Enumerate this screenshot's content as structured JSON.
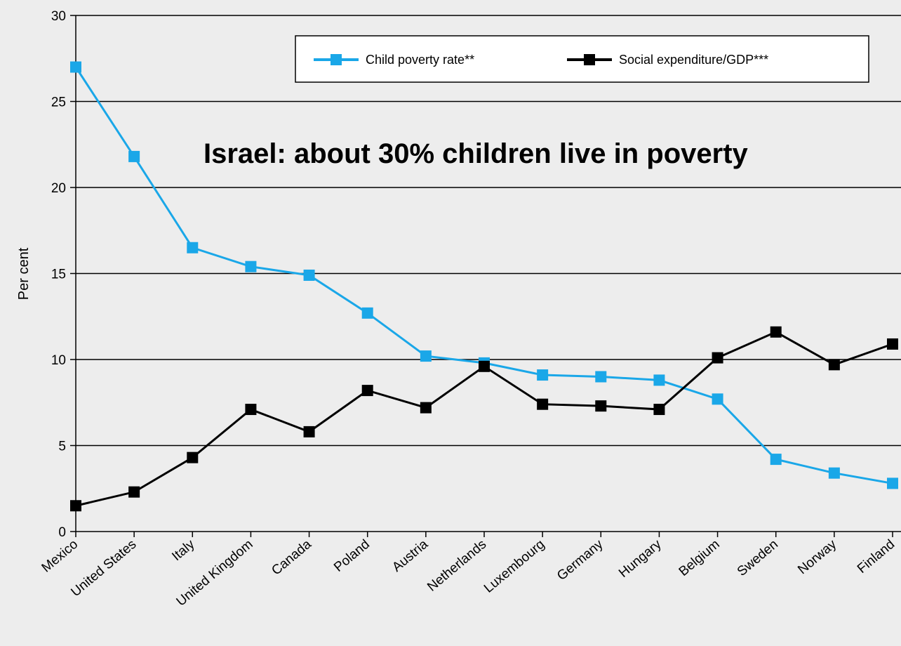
{
  "chart_data": {
    "type": "line",
    "categories": [
      "Mexico",
      "United States",
      "Italy",
      "United Kingdom",
      "Canada",
      "Poland",
      "Austria",
      "Netherlands",
      "Luxembourg",
      "Germany",
      "Hungary",
      "Belgium",
      "Sweden",
      "Norway",
      "Finland"
    ],
    "series": [
      {
        "name": "Child poverty rate**",
        "color": "#1aa7e8",
        "values": [
          27.0,
          21.8,
          16.5,
          15.4,
          14.9,
          12.7,
          10.2,
          9.8,
          9.1,
          9.0,
          8.8,
          7.7,
          4.2,
          3.4,
          2.8
        ]
      },
      {
        "name": "Social expenditure/GDP***",
        "color": "#000000",
        "values": [
          1.5,
          2.3,
          4.3,
          7.1,
          5.8,
          8.2,
          7.2,
          9.6,
          7.4,
          7.3,
          7.1,
          10.1,
          11.6,
          9.7,
          10.9
        ]
      }
    ],
    "ylabel": "Per cent",
    "xlabel": "",
    "ylim": [
      0,
      30
    ],
    "yticks": [
      0,
      5,
      10,
      15,
      20,
      25,
      30
    ],
    "grid": "horizontal",
    "legend_position": "top-right",
    "annotation": "Israel: about 30% children live in poverty"
  }
}
